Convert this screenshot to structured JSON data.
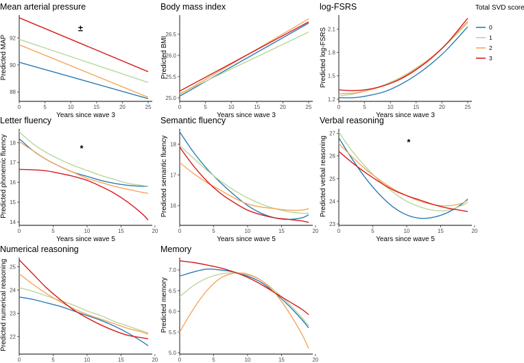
{
  "figure_legend": {
    "title": "Total SVD score",
    "entries": [
      "0",
      "1",
      "2",
      "3"
    ],
    "colors": [
      "#2b7bb4",
      "#b7d79b",
      "#f5a65b",
      "#d7191c"
    ]
  },
  "chart_data": [
    {
      "type": "line",
      "title": "Mean arterial pressure",
      "xlabel": "Years since wave 3",
      "ylabel": "Predicted MAP",
      "xlim": [
        0,
        25
      ],
      "ylim": [
        87.4,
        93.7
      ],
      "xticks": [
        0,
        5,
        10,
        15,
        20,
        25
      ],
      "yticks": [
        88,
        90,
        92
      ],
      "annotation": {
        "text": "±",
        "x": 11.9,
        "y": 92.7
      },
      "series": [
        {
          "name": "0",
          "x": [
            0,
            25
          ],
          "y": [
            90.2,
            87.5
          ]
        },
        {
          "name": "1",
          "x": [
            0,
            25
          ],
          "y": [
            91.9,
            88.7
          ]
        },
        {
          "name": "2",
          "x": [
            0,
            25
          ],
          "y": [
            91.5,
            87.6
          ]
        },
        {
          "name": "3",
          "x": [
            0,
            25
          ],
          "y": [
            93.5,
            89.5
          ]
        }
      ]
    },
    {
      "type": "line",
      "title": "Body mass index",
      "xlabel": "Years since wave 3",
      "ylabel": "Predicted BMI",
      "xlim": [
        0,
        25
      ],
      "ylim": [
        24.95,
        26.95
      ],
      "xticks": [
        0,
        5,
        10,
        15,
        20,
        25
      ],
      "yticks": [
        25.0,
        25.5,
        26.0,
        26.5
      ],
      "series": [
        {
          "name": "0",
          "x": [
            0,
            25
          ],
          "y": [
            25.04,
            26.76
          ]
        },
        {
          "name": "1",
          "x": [
            0,
            25
          ],
          "y": [
            25.1,
            26.55
          ]
        },
        {
          "name": "2",
          "x": [
            0,
            25
          ],
          "y": [
            25.08,
            26.86
          ]
        },
        {
          "name": "3",
          "x": [
            0,
            25
          ],
          "y": [
            25.16,
            26.79
          ]
        }
      ]
    },
    {
      "type": "line",
      "title": "log-FSRS",
      "xlabel": "Years since wave 3",
      "ylabel": "Predicted log-FSRS",
      "xlim": [
        0,
        25
      ],
      "ylim": [
        1.19,
        2.28
      ],
      "xticks": [
        0,
        5,
        10,
        15,
        20,
        25
      ],
      "yticks": [
        1.2,
        1.5,
        1.8,
        2.1
      ],
      "series": [
        {
          "name": "0",
          "x": [
            0,
            3,
            6,
            9,
            12,
            15,
            18,
            21,
            25
          ],
          "y": [
            1.22,
            1.22,
            1.25,
            1.3,
            1.39,
            1.51,
            1.66,
            1.84,
            2.13
          ]
        },
        {
          "name": "1",
          "x": [
            0,
            3,
            6,
            9,
            12,
            15,
            18,
            21,
            25
          ],
          "y": [
            1.24,
            1.27,
            1.32,
            1.39,
            1.48,
            1.6,
            1.74,
            1.91,
            2.18
          ]
        },
        {
          "name": "2",
          "x": [
            0,
            3,
            6,
            9,
            12,
            15,
            18,
            21,
            25
          ],
          "y": [
            1.27,
            1.28,
            1.32,
            1.38,
            1.47,
            1.59,
            1.74,
            1.92,
            2.2
          ]
        },
        {
          "name": "3",
          "x": [
            0,
            3,
            6,
            9,
            12,
            15,
            18,
            21,
            25
          ],
          "y": [
            1.32,
            1.31,
            1.33,
            1.38,
            1.46,
            1.58,
            1.73,
            1.92,
            2.24
          ]
        }
      ]
    },
    {
      "type": "line",
      "title": "Letter fluency",
      "xlabel": "Years since wave 5",
      "ylabel": "Predicted phonemic fluency",
      "xlim": [
        0,
        19
      ],
      "ylim": [
        13.9,
        18.7
      ],
      "xticks": [
        0,
        5,
        10,
        15,
        20
      ],
      "yticks": [
        14,
        15,
        16,
        17,
        18
      ],
      "annotation": {
        "text": "*",
        "x": 9.2,
        "y": 17.7
      },
      "series": [
        {
          "name": "0",
          "x": [
            0,
            2,
            4,
            6,
            8,
            10,
            12,
            14,
            16,
            18,
            19
          ],
          "y": [
            18.2,
            17.6,
            17.15,
            16.8,
            16.5,
            16.3,
            16.1,
            15.95,
            15.85,
            15.8,
            15.8
          ]
        },
        {
          "name": "1",
          "x": [
            0,
            2,
            4,
            6,
            8,
            10,
            12,
            14,
            16,
            18,
            19
          ],
          "y": [
            18.55,
            17.95,
            17.5,
            17.15,
            16.85,
            16.6,
            16.35,
            16.15,
            15.95,
            15.85,
            15.8
          ]
        },
        {
          "name": "2",
          "x": [
            0,
            2,
            4,
            6,
            8,
            10,
            12,
            14,
            16,
            18,
            19
          ],
          "y": [
            18.05,
            17.6,
            17.15,
            16.8,
            16.5,
            16.2,
            16.0,
            15.8,
            15.65,
            15.5,
            15.45
          ]
        },
        {
          "name": "3",
          "x": [
            0,
            2,
            4,
            6,
            8,
            10,
            12,
            14,
            16,
            18,
            19
          ],
          "y": [
            16.65,
            16.63,
            16.58,
            16.45,
            16.3,
            16.1,
            15.8,
            15.45,
            15.0,
            14.45,
            14.1
          ]
        }
      ]
    },
    {
      "type": "line",
      "title": "Semantic fluency",
      "xlabel": "Years since wave 5",
      "ylabel": "Predicted semantic fluency",
      "xlim": [
        0,
        19
      ],
      "ylim": [
        15.4,
        18.5
      ],
      "xticks": [
        0,
        5,
        10,
        15,
        20
      ],
      "yticks": [
        16,
        17,
        18
      ],
      "series": [
        {
          "name": "0",
          "x": [
            0,
            2,
            4,
            6,
            8,
            10,
            12,
            14,
            16,
            18,
            19
          ],
          "y": [
            18.4,
            17.75,
            17.2,
            16.75,
            16.35,
            16.0,
            15.75,
            15.6,
            15.55,
            15.6,
            15.7
          ]
        },
        {
          "name": "1",
          "x": [
            0,
            2,
            4,
            6,
            8,
            10,
            12,
            14,
            16,
            18,
            19
          ],
          "y": [
            17.95,
            17.55,
            17.15,
            16.8,
            16.5,
            16.25,
            16.05,
            15.9,
            15.8,
            15.75,
            15.75
          ]
        },
        {
          "name": "2",
          "x": [
            0,
            2,
            4,
            6,
            8,
            10,
            12,
            14,
            16,
            18,
            19
          ],
          "y": [
            17.4,
            17.05,
            16.75,
            16.5,
            16.25,
            16.05,
            15.95,
            15.9,
            15.85,
            15.85,
            15.9
          ]
        },
        {
          "name": "3",
          "x": [
            0,
            2,
            4,
            6,
            8,
            10,
            12,
            14,
            16,
            18,
            19
          ],
          "y": [
            17.9,
            17.3,
            16.8,
            16.4,
            16.1,
            15.85,
            15.7,
            15.6,
            15.55,
            15.5,
            15.45
          ]
        }
      ]
    },
    {
      "type": "line",
      "title": "Verbal reasoning",
      "xlabel": "Years since wave 5",
      "ylabel": "Predicted verbal reasoning",
      "xlim": [
        0,
        19
      ],
      "ylim": [
        23.0,
        27.2
      ],
      "xticks": [
        0,
        5,
        10,
        15,
        20
      ],
      "yticks": [
        23,
        24,
        25,
        26,
        27
      ],
      "annotation": {
        "text": "*",
        "x": 10.3,
        "y": 26.6
      },
      "series": [
        {
          "name": "0",
          "x": [
            0,
            2,
            4,
            6,
            8,
            10,
            12,
            14,
            16,
            18,
            19
          ],
          "y": [
            26.8,
            25.85,
            25.0,
            24.3,
            23.75,
            23.4,
            23.25,
            23.3,
            23.5,
            23.85,
            24.1
          ]
        },
        {
          "name": "1",
          "x": [
            0,
            2,
            4,
            6,
            8,
            10,
            12,
            14,
            16,
            18,
            19
          ],
          "y": [
            27.05,
            26.2,
            25.5,
            24.9,
            24.4,
            24.0,
            23.75,
            23.6,
            23.6,
            23.8,
            23.95
          ]
        },
        {
          "name": "2",
          "x": [
            0,
            2,
            4,
            6,
            8,
            10,
            12,
            14,
            16,
            18,
            19
          ],
          "y": [
            26.55,
            25.95,
            25.4,
            24.95,
            24.55,
            24.25,
            24.0,
            23.85,
            23.8,
            23.9,
            24.05
          ]
        },
        {
          "name": "3",
          "x": [
            0,
            2,
            4,
            6,
            8,
            10,
            12,
            14,
            16,
            18,
            19
          ],
          "y": [
            26.2,
            25.7,
            25.25,
            24.85,
            24.5,
            24.25,
            24.05,
            23.85,
            23.7,
            23.6,
            23.55
          ]
        }
      ]
    },
    {
      "type": "line",
      "title": "Numerical reasoning",
      "xlabel": "Years since wave 5",
      "ylabel": "Predicted numerical reasoning",
      "xlim": [
        0,
        19
      ],
      "ylim": [
        21.3,
        25.4
      ],
      "xticks": [
        0,
        5,
        10,
        15,
        20
      ],
      "yticks": [
        22,
        23,
        24,
        25
      ],
      "series": [
        {
          "name": "0",
          "x": [
            0,
            2,
            4,
            6,
            8,
            10,
            12,
            14,
            16,
            18,
            19
          ],
          "y": [
            23.7,
            23.6,
            23.45,
            23.3,
            23.1,
            22.9,
            22.7,
            22.45,
            22.15,
            21.8,
            21.6
          ]
        },
        {
          "name": "1",
          "x": [
            0,
            2,
            4,
            6,
            8,
            10,
            12,
            14,
            16,
            18,
            19
          ],
          "y": [
            24.1,
            23.95,
            23.75,
            23.55,
            23.35,
            23.1,
            22.9,
            22.65,
            22.45,
            22.25,
            22.15
          ]
        },
        {
          "name": "2",
          "x": [
            0,
            2,
            4,
            6,
            8,
            10,
            12,
            14,
            16,
            18,
            19
          ],
          "y": [
            24.7,
            24.25,
            23.85,
            23.5,
            23.2,
            22.95,
            22.75,
            22.55,
            22.35,
            22.2,
            22.1
          ]
        },
        {
          "name": "3",
          "x": [
            0,
            2,
            4,
            6,
            8,
            10,
            12,
            14,
            16,
            18,
            19
          ],
          "y": [
            25.3,
            24.7,
            24.1,
            23.6,
            23.15,
            22.8,
            22.5,
            22.25,
            22.05,
            21.95,
            21.9
          ]
        }
      ]
    },
    {
      "type": "line",
      "title": "Memory",
      "xlabel": "Years since wave 5",
      "ylabel": "Predicted memory",
      "xlim": [
        0,
        19
      ],
      "ylim": [
        5.0,
        7.3
      ],
      "xticks": [
        0,
        5,
        10,
        15,
        20
      ],
      "yticks": [
        5.0,
        5.5,
        6.0,
        6.5,
        7.0
      ],
      "series": [
        {
          "name": "0",
          "x": [
            0,
            2,
            4,
            6,
            8,
            10,
            12,
            14,
            16,
            18,
            19
          ],
          "y": [
            6.85,
            6.95,
            7.02,
            7.0,
            6.95,
            6.85,
            6.7,
            6.45,
            6.15,
            5.8,
            5.6
          ]
        },
        {
          "name": "1",
          "x": [
            0,
            2,
            4,
            6,
            8,
            10,
            12,
            14,
            16,
            18,
            19
          ],
          "y": [
            6.35,
            6.62,
            6.8,
            6.9,
            6.93,
            6.88,
            6.75,
            6.5,
            6.2,
            5.85,
            5.65
          ]
        },
        {
          "name": "2",
          "x": [
            0,
            2,
            4,
            6,
            8,
            10,
            12,
            14,
            16,
            18,
            19
          ],
          "y": [
            5.5,
            6.05,
            6.5,
            6.8,
            6.92,
            6.9,
            6.75,
            6.45,
            6.0,
            5.45,
            5.1
          ]
        },
        {
          "name": "3",
          "x": [
            0,
            2,
            4,
            6,
            8,
            10,
            12,
            14,
            16,
            18,
            19
          ],
          "y": [
            7.22,
            7.18,
            7.12,
            7.05,
            6.95,
            6.82,
            6.65,
            6.45,
            6.25,
            6.05,
            5.92
          ]
        }
      ]
    }
  ]
}
